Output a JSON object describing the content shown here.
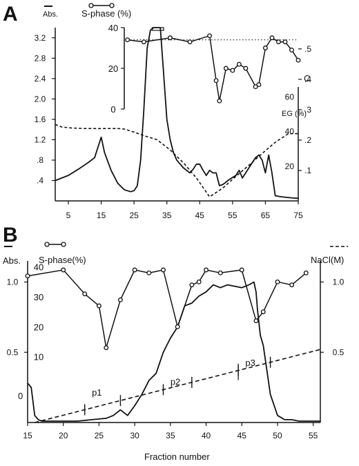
{
  "chart_data": [
    {
      "panel": "A",
      "type": "line",
      "title": "",
      "xlabel": "",
      "x_ticks": [
        5,
        15,
        25,
        35,
        45,
        55,
        65,
        75
      ],
      "xlim": [
        1,
        75
      ],
      "left_axis": {
        "label": "Abs.",
        "ticks": [
          ".4",
          ".8",
          "1.2",
          "1.6",
          "2.0",
          "2.4",
          "2.8",
          "3.2"
        ],
        "ylim": [
          0,
          3.4
        ]
      },
      "inset_axis": {
        "label": "S-phase (%)",
        "ticks": [
          "0",
          "20",
          "40"
        ],
        "ylim": [
          0,
          40
        ]
      },
      "right_axis_outer": {
        "label": "C",
        "ticks": [
          ".1",
          ".2",
          ".3",
          ".4",
          ".5"
        ],
        "ylim": [
          0,
          0.57
        ]
      },
      "right_axis_inner": {
        "label": "EG (%)",
        "ticks": [
          "20",
          "40",
          "60"
        ],
        "ylim": [
          0,
          100
        ]
      },
      "series": [
        {
          "style": "solid-line",
          "axis": "left",
          "x": [
            1,
            5,
            8,
            11,
            13,
            14,
            15,
            16,
            18,
            20,
            22,
            24,
            25,
            26,
            27,
            28,
            29,
            30,
            31,
            32,
            33,
            34,
            35,
            36,
            37,
            38,
            40,
            42,
            43,
            44,
            45,
            46,
            47,
            48,
            49,
            50,
            51,
            52,
            54,
            56,
            57,
            58,
            59,
            60,
            62,
            63,
            64,
            65,
            66,
            67,
            68,
            70,
            73,
            75
          ],
          "y": [
            0.4,
            0.5,
            0.62,
            0.75,
            0.85,
            1.05,
            1.25,
            0.95,
            0.6,
            0.35,
            0.22,
            0.18,
            0.2,
            0.3,
            0.8,
            1.8,
            3.0,
            3.35,
            3.4,
            3.4,
            3.4,
            2.5,
            1.6,
            1.2,
            0.95,
            0.8,
            0.65,
            0.55,
            0.62,
            0.72,
            0.72,
            0.6,
            0.5,
            0.6,
            0.55,
            0.55,
            0.3,
            0.32,
            0.42,
            0.5,
            0.6,
            0.45,
            0.55,
            0.65,
            0.85,
            0.9,
            0.8,
            0.55,
            0.9,
            0.55,
            0.1,
            0.08,
            0.06,
            0.05
          ]
        },
        {
          "style": "dashed-line",
          "axis": "left",
          "x": [
            1,
            3,
            6,
            10,
            15,
            20,
            22,
            25,
            28,
            32,
            36,
            40,
            44,
            48,
            52,
            56,
            60,
            64,
            68,
            72,
            75
          ],
          "y": [
            1.5,
            1.45,
            1.43,
            1.42,
            1.42,
            1.42,
            1.41,
            1.35,
            1.28,
            1.2,
            1.0,
            0.75,
            0.45,
            0.08,
            0.25,
            0.48,
            0.7,
            0.93,
            1.15,
            1.32,
            1.32
          ]
        },
        {
          "style": "line-with-open-circles",
          "axis": "inset",
          "x": [
            23,
            28,
            36,
            42,
            48,
            50,
            51,
            53,
            55,
            57,
            59,
            62,
            63,
            65,
            67,
            69,
            71,
            73,
            75
          ],
          "y": [
            34,
            33,
            35,
            33,
            36,
            14,
            4,
            20,
            19,
            22,
            20,
            11,
            12,
            30,
            35,
            33,
            33,
            29,
            24
          ]
        },
        {
          "style": "dotted-reference",
          "axis": "inset",
          "x": [
            23,
            75
          ],
          "y": [
            34,
            34
          ]
        }
      ]
    },
    {
      "panel": "B",
      "type": "line",
      "title": "",
      "xlabel": "Fraction number",
      "x_ticks": [
        15,
        20,
        25,
        30,
        35,
        40,
        45,
        50,
        55
      ],
      "xlim": [
        15,
        56
      ],
      "left_axis_abs": {
        "label": "Abs.",
        "ticks": [
          "0.5",
          "1.0"
        ],
        "ylim": [
          0,
          1.15
        ]
      },
      "left_axis_sphase": {
        "label": "S-phase(%)",
        "ticks": [
          "10",
          "20",
          "30",
          "40"
        ],
        "ylim": [
          -12,
          42
        ]
      },
      "right_axis": {
        "label": "NaCl(M)",
        "ticks": [
          "0.5",
          "1.0"
        ],
        "ylim": [
          0,
          1.15
        ]
      },
      "peak_labels": [
        "p1",
        "p2",
        "p3"
      ],
      "start_label": "0",
      "series": [
        {
          "style": "solid-line",
          "axis": "abs",
          "x": [
            15,
            15.5,
            16,
            16.5,
            17,
            18,
            20,
            22,
            24,
            26,
            27,
            28,
            29,
            30,
            31,
            32,
            33,
            34,
            35,
            36,
            37,
            38,
            39,
            40,
            41,
            42,
            43,
            44,
            45,
            46,
            46.7,
            47,
            47.2,
            47.6,
            48,
            49,
            50,
            51,
            52,
            53,
            54,
            55,
            56
          ],
          "y": [
            0.28,
            0.25,
            0.05,
            0.02,
            0.01,
            0.01,
            0.01,
            0.01,
            0.02,
            0.03,
            0.05,
            0.09,
            0.05,
            0.12,
            0.2,
            0.3,
            0.35,
            0.5,
            0.6,
            0.68,
            0.83,
            0.85,
            0.9,
            0.93,
            0.98,
            0.96,
            0.98,
            0.97,
            0.96,
            0.98,
            1.0,
            0.93,
            0.8,
            0.62,
            0.55,
            0.2,
            0.05,
            0.02,
            0.02,
            0.01,
            0.01,
            0.01,
            0.01
          ]
        },
        {
          "style": "line-with-open-circles",
          "axis": "sphase",
          "x": [
            15,
            20,
            23,
            25,
            26,
            28,
            30,
            32,
            34,
            36,
            38,
            39,
            40,
            42,
            45,
            47,
            48,
            50,
            52,
            54
          ],
          "y": [
            37,
            39,
            31,
            27,
            13,
            29,
            39,
            38,
            39,
            20,
            34,
            35,
            39,
            38,
            39,
            22,
            25,
            35,
            34,
            38
          ]
        },
        {
          "style": "dashed-line",
          "axis": "nacl",
          "x": [
            16,
            56
          ],
          "y": [
            0.0,
            0.52
          ]
        }
      ]
    }
  ]
}
